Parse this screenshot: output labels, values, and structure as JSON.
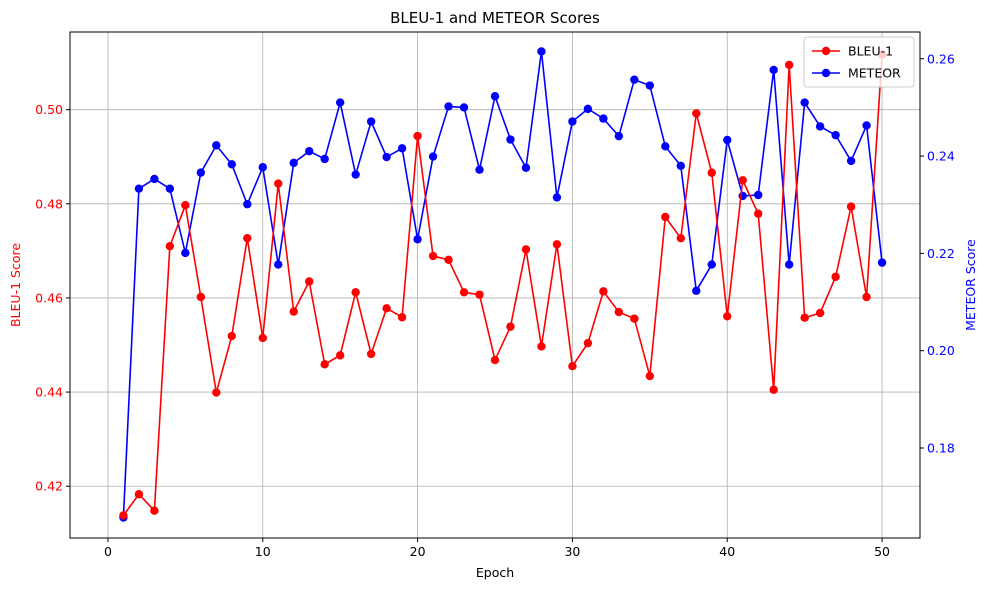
{
  "chart_data": {
    "type": "line",
    "title": "BLEU-1 and METEOR Scores",
    "xlabel": "Epoch",
    "ylabel_left": "BLEU-1 Score",
    "ylabel_right": "METEOR Score",
    "xlim": [
      -2.45,
      52.45
    ],
    "ylim_left": [
      0.409,
      0.5165
    ],
    "ylim_right": [
      0.1615,
      0.2655
    ],
    "x_ticks": [
      0,
      10,
      20,
      30,
      40,
      50
    ],
    "y_left_ticks": [
      "0.42",
      "0.44",
      "0.46",
      "0.48",
      "0.50"
    ],
    "y_right_ticks": [
      "0.18",
      "0.20",
      "0.22",
      "0.24",
      "0.26"
    ],
    "grid": true,
    "legend_position": "top-right",
    "x": [
      1,
      2,
      3,
      4,
      5,
      6,
      7,
      8,
      9,
      10,
      11,
      12,
      13,
      14,
      15,
      16,
      17,
      18,
      19,
      20,
      21,
      22,
      23,
      24,
      25,
      26,
      27,
      28,
      29,
      30,
      31,
      32,
      33,
      34,
      35,
      36,
      37,
      38,
      39,
      40,
      41,
      42,
      43,
      44,
      45,
      46,
      47,
      48,
      49,
      50
    ],
    "series": [
      {
        "name": "BLEU-1",
        "axis": "left",
        "color": "#ff0000",
        "values": [
          0.4138,
          0.4183,
          0.4148,
          0.471,
          0.4797,
          0.4602,
          0.4399,
          0.4519,
          0.4727,
          0.4515,
          0.4843,
          0.4571,
          0.4635,
          0.4459,
          0.4478,
          0.4612,
          0.4481,
          0.4578,
          0.4559,
          0.4944,
          0.4689,
          0.4681,
          0.4612,
          0.4607,
          0.4468,
          0.4539,
          0.4703,
          0.4497,
          0.4714,
          0.4455,
          0.4504,
          0.4614,
          0.457,
          0.4556,
          0.4434,
          0.4772,
          0.4727,
          0.4992,
          0.4866,
          0.4561,
          0.485,
          0.4779,
          0.4405,
          0.5095,
          0.4558,
          0.4568,
          0.4645,
          0.4794,
          0.4602,
          0.5117
        ]
      },
      {
        "name": "METEOR",
        "axis": "right",
        "color": "#0000ff",
        "values": [
          0.1657,
          0.2333,
          0.2353,
          0.2333,
          0.2201,
          0.2366,
          0.2422,
          0.2383,
          0.2301,
          0.2377,
          0.2177,
          0.2386,
          0.241,
          0.2394,
          0.251,
          0.2362,
          0.2471,
          0.2398,
          0.2416,
          0.2229,
          0.2399,
          0.2502,
          0.25,
          0.2372,
          0.2523,
          0.2434,
          0.2376,
          0.2615,
          0.2315,
          0.2471,
          0.2497,
          0.2477,
          0.2441,
          0.2557,
          0.2545,
          0.242,
          0.238,
          0.2123,
          0.2177,
          0.2433,
          0.2318,
          0.232,
          0.2577,
          0.2177,
          0.251,
          0.2461,
          0.2443,
          0.239,
          0.2463,
          0.2181
        ]
      }
    ]
  }
}
